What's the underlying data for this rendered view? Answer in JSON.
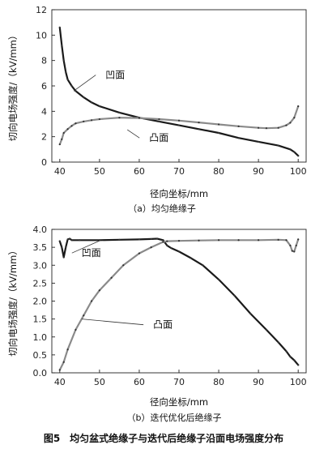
{
  "chart_data": [
    {
      "type": "line",
      "caption": "（a）均匀绝缘子",
      "xlabel": "径向坐标/mm",
      "ylabel": "切向电场强度/（kV/mm）",
      "xlim": [
        38,
        102
      ],
      "ylim": [
        0,
        12
      ],
      "xticks": [
        40,
        50,
        60,
        70,
        80,
        90,
        100
      ],
      "yticks": [
        0,
        2,
        4,
        6,
        8,
        10,
        12
      ],
      "series": [
        {
          "name": "凹面",
          "color": "#1a1a1a",
          "x": [
            40,
            40.5,
            41,
            41.5,
            42,
            43,
            44,
            46,
            48,
            50,
            55,
            60,
            65,
            70,
            75,
            80,
            85,
            90,
            95,
            98,
            99,
            100
          ],
          "y": [
            10.6,
            9.2,
            8.0,
            7.1,
            6.5,
            6.0,
            5.6,
            5.1,
            4.7,
            4.4,
            3.9,
            3.5,
            3.2,
            2.9,
            2.6,
            2.3,
            1.9,
            1.6,
            1.3,
            1.0,
            0.8,
            0.5
          ]
        },
        {
          "name": "凸面",
          "color": "#8a8a8a",
          "x": [
            40,
            40.5,
            41,
            42,
            43,
            44,
            46,
            48,
            50,
            55,
            60,
            65,
            70,
            75,
            80,
            85,
            90,
            92,
            95,
            97,
            98,
            99,
            100
          ],
          "y": [
            1.4,
            1.8,
            2.3,
            2.6,
            2.85,
            3.05,
            3.2,
            3.3,
            3.38,
            3.5,
            3.47,
            3.38,
            3.27,
            3.12,
            2.97,
            2.82,
            2.7,
            2.67,
            2.7,
            2.9,
            3.1,
            3.5,
            4.4
          ]
        }
      ],
      "annotations": [
        {
          "text": "凹面",
          "x": 51.5,
          "y": 6.6,
          "pointer": [
            43.5,
            5.6
          ]
        },
        {
          "text": "凸面",
          "x": 62.5,
          "y": 1.65,
          "pointer": [
            57,
            2.55
          ]
        }
      ]
    },
    {
      "type": "line",
      "caption": "（b）迭代优化后绝缘子",
      "xlabel": "径向坐标/mm",
      "ylabel": "切向电场强度/（kV/mm）",
      "xlim": [
        38,
        102
      ],
      "ylim": [
        0,
        4
      ],
      "xticks": [
        40,
        50,
        60,
        70,
        80,
        90,
        100
      ],
      "yticks": [
        0.0,
        0.5,
        1.0,
        1.5,
        2.0,
        2.5,
        3.0,
        3.5,
        4.0
      ],
      "tick_format": "fixed1",
      "series": [
        {
          "name": "凹面",
          "color": "#1a1a1a",
          "x": [
            40,
            40.5,
            41,
            41.5,
            42,
            42.5,
            43,
            45,
            50,
            55,
            60,
            63,
            64.5,
            66,
            67,
            68,
            70,
            73,
            76,
            80,
            84,
            88,
            92,
            95,
            97,
            98,
            99,
            100
          ],
          "y": [
            3.67,
            3.5,
            3.22,
            3.5,
            3.72,
            3.74,
            3.7,
            3.7,
            3.7,
            3.71,
            3.72,
            3.73,
            3.74,
            3.7,
            3.55,
            3.48,
            3.38,
            3.2,
            3.0,
            2.6,
            2.15,
            1.65,
            1.2,
            0.85,
            0.6,
            0.45,
            0.35,
            0.22
          ]
        },
        {
          "name": "凸面",
          "color": "#8a8a8a",
          "x": [
            40,
            41,
            42,
            44,
            46,
            48,
            50,
            53,
            56,
            60,
            63,
            66,
            67,
            70,
            75,
            80,
            85,
            90,
            95,
            97,
            98,
            98.5,
            99,
            99.5,
            100
          ],
          "y": [
            0.08,
            0.3,
            0.65,
            1.2,
            1.6,
            2.0,
            2.3,
            2.65,
            3.0,
            3.33,
            3.5,
            3.65,
            3.67,
            3.68,
            3.69,
            3.7,
            3.7,
            3.7,
            3.71,
            3.7,
            3.55,
            3.4,
            3.38,
            3.55,
            3.72
          ]
        }
      ],
      "annotations": [
        {
          "text": "凹面",
          "x": 45.5,
          "y": 3.25,
          "pointer": [
            50,
            3.68
          ]
        },
        {
          "text": "凸面",
          "x": 63.5,
          "y": 1.25,
          "pointer": [
            45.5,
            1.5
          ]
        }
      ]
    }
  ],
  "figure_caption": "图5　均匀盆式绝缘子与迭代后绝缘子沿面电场强度分布"
}
